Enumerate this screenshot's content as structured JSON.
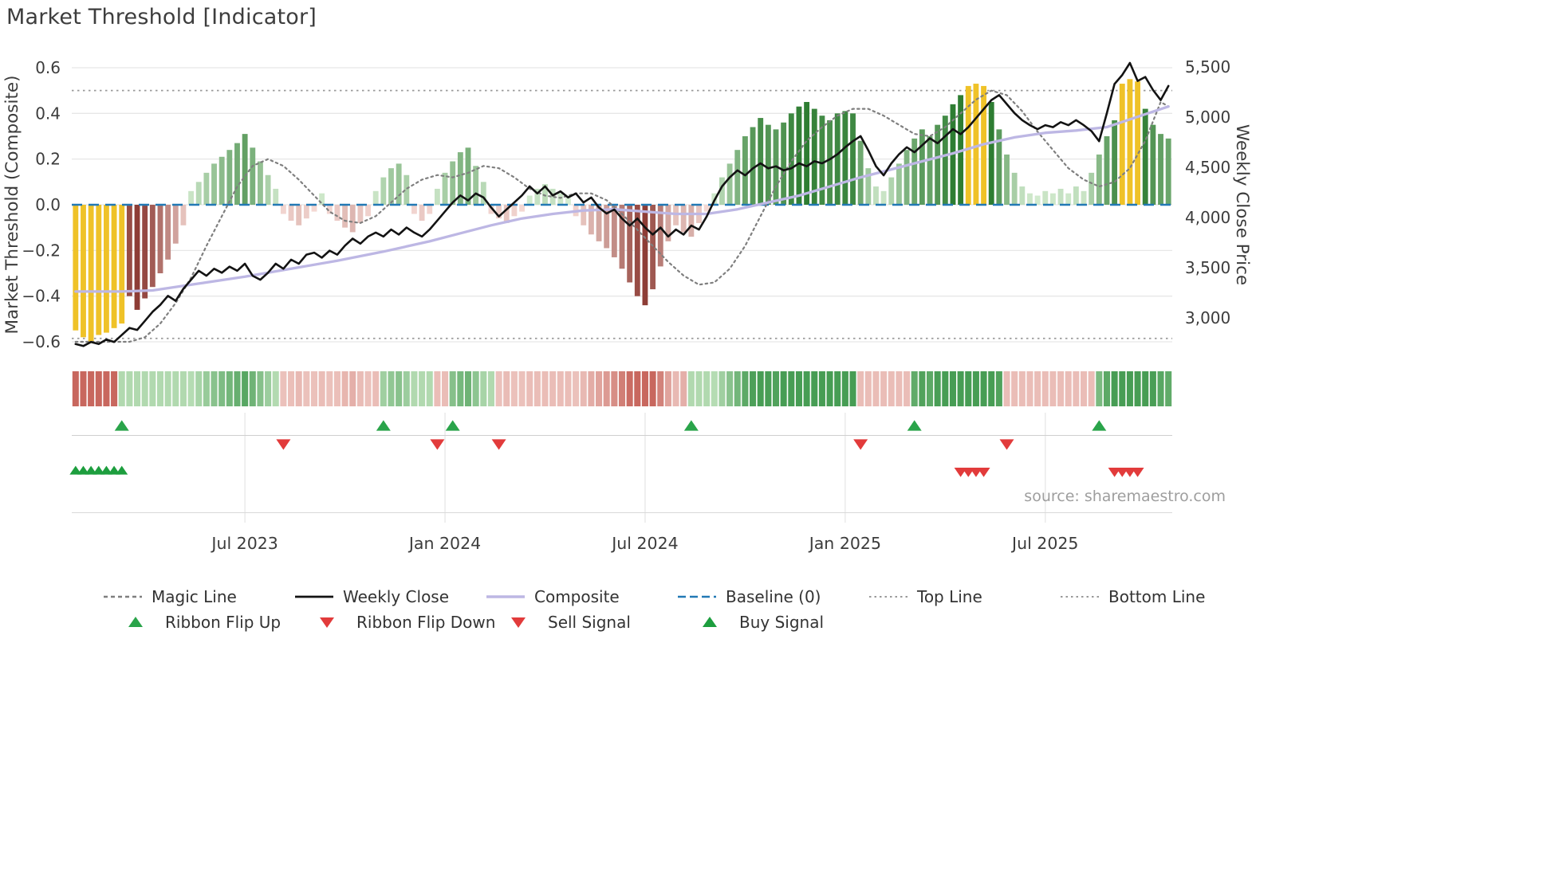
{
  "title": "Market Threshold [Indicator]",
  "source": "source: sharemaestro.com",
  "axes": {
    "left_label": "Market Threshold (Composite)",
    "right_label": "Weekly Close Price",
    "left_ticks": [
      {
        "label": "0.6",
        "value": 0.6
      },
      {
        "label": "0.4",
        "value": 0.4
      },
      {
        "label": "0.2",
        "value": 0.2
      },
      {
        "label": "0.0",
        "value": 0.0
      },
      {
        "label": "−0.2",
        "value": -0.2
      },
      {
        "label": "−0.4",
        "value": -0.4
      },
      {
        "label": "−0.6",
        "value": -0.6
      }
    ],
    "right_ticks": [
      {
        "label": "5,500",
        "value": 5500
      },
      {
        "label": "5,000",
        "value": 5000
      },
      {
        "label": "4,500",
        "value": 4500
      },
      {
        "label": "4,000",
        "value": 4000
      },
      {
        "label": "3,500",
        "value": 3500
      },
      {
        "label": "3,000",
        "value": 3000
      }
    ],
    "x_ticks": [
      {
        "label": "Jul 2023",
        "week": 22
      },
      {
        "label": "Jan 2024",
        "week": 48
      },
      {
        "label": "Jul 2024",
        "week": 74
      },
      {
        "label": "Jan 2025",
        "week": 100
      },
      {
        "label": "Jul 2025",
        "week": 126
      }
    ]
  },
  "chart_data": {
    "type": "bar+line",
    "frequency": "weekly",
    "baseline": 0,
    "top_line": 0.5,
    "bottom_line": -0.585,
    "upper_extreme": 0.5,
    "lower_extreme": -0.5,
    "left_axis_range": [
      -0.65,
      0.65
    ],
    "right_axis_range": [
      2700,
      5600
    ],
    "threshold_bars": [
      -0.55,
      -0.58,
      -0.6,
      -0.57,
      -0.56,
      -0.54,
      -0.52,
      -0.4,
      -0.46,
      -0.41,
      -0.36,
      -0.3,
      -0.24,
      -0.17,
      -0.09,
      0.06,
      0.1,
      0.14,
      0.18,
      0.21,
      0.24,
      0.27,
      0.31,
      0.25,
      0.19,
      0.13,
      0.07,
      -0.04,
      -0.07,
      -0.09,
      -0.06,
      -0.03,
      0.05,
      -0.04,
      -0.07,
      -0.1,
      -0.12,
      -0.08,
      -0.05,
      0.06,
      0.12,
      0.16,
      0.18,
      0.13,
      -0.04,
      -0.07,
      -0.04,
      0.07,
      0.14,
      0.19,
      0.23,
      0.25,
      0.17,
      0.1,
      -0.04,
      -0.06,
      -0.08,
      -0.05,
      -0.03,
      0.04,
      0.07,
      0.09,
      0.07,
      0.05,
      0.03,
      -0.05,
      -0.09,
      -0.13,
      -0.16,
      -0.19,
      -0.23,
      -0.28,
      -0.34,
      -0.4,
      -0.44,
      -0.37,
      -0.27,
      -0.16,
      -0.09,
      -0.12,
      -0.14,
      -0.08,
      -0.03,
      0.05,
      0.12,
      0.18,
      0.24,
      0.3,
      0.34,
      0.38,
      0.35,
      0.33,
      0.36,
      0.4,
      0.43,
      0.45,
      0.42,
      0.39,
      0.37,
      0.4,
      0.41,
      0.4,
      0.28,
      0.16,
      0.08,
      0.06,
      0.12,
      0.18,
      0.24,
      0.29,
      0.33,
      0.3,
      0.35,
      0.39,
      0.44,
      0.48,
      0.52,
      0.53,
      0.52,
      0.45,
      0.33,
      0.22,
      0.14,
      0.08,
      0.05,
      0.04,
      0.06,
      0.05,
      0.07,
      0.05,
      0.08,
      0.06,
      0.14,
      0.22,
      0.3,
      0.37,
      0.53,
      0.55,
      0.54,
      0.42,
      0.35,
      0.31,
      0.29
    ],
    "weekly_close_price": [
      2740,
      2720,
      2760,
      2740,
      2785,
      2760,
      2830,
      2900,
      2880,
      2970,
      3060,
      3130,
      3220,
      3170,
      3290,
      3380,
      3470,
      3420,
      3490,
      3450,
      3510,
      3470,
      3540,
      3420,
      3380,
      3450,
      3540,
      3490,
      3580,
      3540,
      3630,
      3650,
      3600,
      3670,
      3630,
      3720,
      3790,
      3740,
      3810,
      3850,
      3810,
      3880,
      3830,
      3900,
      3850,
      3810,
      3880,
      3970,
      4060,
      4150,
      4220,
      4170,
      4240,
      4200,
      4100,
      4010,
      4080,
      4150,
      4220,
      4310,
      4240,
      4310,
      4220,
      4260,
      4200,
      4240,
      4150,
      4200,
      4100,
      4040,
      4080,
      3990,
      3920,
      3990,
      3900,
      3830,
      3900,
      3810,
      3880,
      3830,
      3920,
      3880,
      4010,
      4170,
      4310,
      4400,
      4470,
      4420,
      4490,
      4540,
      4490,
      4510,
      4470,
      4490,
      4540,
      4510,
      4560,
      4540,
      4580,
      4630,
      4700,
      4760,
      4810,
      4670,
      4510,
      4420,
      4540,
      4630,
      4700,
      4650,
      4720,
      4790,
      4740,
      4810,
      4880,
      4830,
      4900,
      4990,
      5080,
      5170,
      5220,
      5130,
      5040,
      4970,
      4920,
      4880,
      4920,
      4900,
      4950,
      4920,
      4970,
      4920,
      4860,
      4760,
      5040,
      5330,
      5420,
      5540,
      5360,
      5400,
      5270,
      5170,
      5310
    ],
    "composite_line": [
      [
        0,
        -0.38
      ],
      [
        6,
        -0.38
      ],
      [
        10,
        -0.375
      ],
      [
        16,
        -0.345
      ],
      [
        22,
        -0.315
      ],
      [
        28,
        -0.28
      ],
      [
        34,
        -0.245
      ],
      [
        40,
        -0.205
      ],
      [
        46,
        -0.16
      ],
      [
        50,
        -0.125
      ],
      [
        54,
        -0.09
      ],
      [
        58,
        -0.06
      ],
      [
        62,
        -0.04
      ],
      [
        66,
        -0.025
      ],
      [
        70,
        -0.02
      ],
      [
        74,
        -0.03
      ],
      [
        78,
        -0.04
      ],
      [
        82,
        -0.04
      ],
      [
        86,
        -0.02
      ],
      [
        90,
        0.01
      ],
      [
        94,
        0.04
      ],
      [
        98,
        0.08
      ],
      [
        102,
        0.12
      ],
      [
        106,
        0.155
      ],
      [
        110,
        0.19
      ],
      [
        114,
        0.225
      ],
      [
        118,
        0.265
      ],
      [
        122,
        0.295
      ],
      [
        126,
        0.315
      ],
      [
        130,
        0.325
      ],
      [
        134,
        0.34
      ],
      [
        138,
        0.385
      ],
      [
        142,
        0.43
      ]
    ],
    "magic_line": [
      [
        0,
        -0.6
      ],
      [
        7,
        -0.6
      ],
      [
        9,
        -0.58
      ],
      [
        11,
        -0.52
      ],
      [
        13,
        -0.43
      ],
      [
        15,
        -0.32
      ],
      [
        17,
        -0.18
      ],
      [
        19,
        -0.05
      ],
      [
        21,
        0.08
      ],
      [
        23,
        0.17
      ],
      [
        25,
        0.2
      ],
      [
        27,
        0.17
      ],
      [
        29,
        0.11
      ],
      [
        31,
        0.04
      ],
      [
        33,
        -0.03
      ],
      [
        35,
        -0.07
      ],
      [
        37,
        -0.08
      ],
      [
        39,
        -0.05
      ],
      [
        41,
        0.01
      ],
      [
        43,
        0.07
      ],
      [
        45,
        0.11
      ],
      [
        47,
        0.13
      ],
      [
        49,
        0.12
      ],
      [
        51,
        0.14
      ],
      [
        53,
        0.17
      ],
      [
        55,
        0.16
      ],
      [
        57,
        0.12
      ],
      [
        59,
        0.07
      ],
      [
        61,
        0.04
      ],
      [
        63,
        0.03
      ],
      [
        65,
        0.05
      ],
      [
        67,
        0.05
      ],
      [
        69,
        0.02
      ],
      [
        71,
        -0.04
      ],
      [
        73,
        -0.11
      ],
      [
        75,
        -0.18
      ],
      [
        77,
        -0.25
      ],
      [
        79,
        -0.31
      ],
      [
        81,
        -0.35
      ],
      [
        83,
        -0.34
      ],
      [
        85,
        -0.28
      ],
      [
        87,
        -0.18
      ],
      [
        89,
        -0.05
      ],
      [
        91,
        0.08
      ],
      [
        93,
        0.19
      ],
      [
        95,
        0.28
      ],
      [
        97,
        0.34
      ],
      [
        99,
        0.39
      ],
      [
        101,
        0.42
      ],
      [
        103,
        0.42
      ],
      [
        105,
        0.39
      ],
      [
        107,
        0.35
      ],
      [
        109,
        0.31
      ],
      [
        111,
        0.3
      ],
      [
        113,
        0.34
      ],
      [
        115,
        0.4
      ],
      [
        117,
        0.46
      ],
      [
        119,
        0.5
      ],
      [
        121,
        0.48
      ],
      [
        123,
        0.41
      ],
      [
        125,
        0.32
      ],
      [
        127,
        0.24
      ],
      [
        129,
        0.16
      ],
      [
        131,
        0.11
      ],
      [
        133,
        0.08
      ],
      [
        135,
        0.1
      ],
      [
        137,
        0.16
      ],
      [
        139,
        0.28
      ],
      [
        141,
        0.45
      ],
      [
        142,
        0.43
      ]
    ],
    "ribbon_segments": [
      {
        "from": 0,
        "to": 5,
        "state": "down"
      },
      {
        "from": 6,
        "to": 26,
        "state": "up"
      },
      {
        "from": 27,
        "to": 39,
        "state": "down"
      },
      {
        "from": 40,
        "to": 46,
        "state": "up"
      },
      {
        "from": 47,
        "to": 48,
        "state": "down"
      },
      {
        "from": 49,
        "to": 54,
        "state": "up"
      },
      {
        "from": 55,
        "to": 79,
        "state": "down"
      },
      {
        "from": 80,
        "to": 101,
        "state": "up"
      },
      {
        "from": 102,
        "to": 108,
        "state": "down"
      },
      {
        "from": 109,
        "to": 120,
        "state": "up"
      },
      {
        "from": 121,
        "to": 132,
        "state": "down"
      },
      {
        "from": 133,
        "to": 142,
        "state": "up"
      }
    ],
    "signals": {
      "ribbon_flip_up_weeks": [
        6,
        40,
        49,
        80,
        109,
        133
      ],
      "ribbon_flip_down_weeks": [
        27,
        47,
        55,
        102,
        121
      ],
      "buy_signal_weeks": [
        0,
        1,
        2,
        3,
        4,
        5,
        6
      ],
      "sell_signal_weeks": [
        115,
        116,
        117,
        118,
        135,
        136,
        137,
        138
      ]
    }
  },
  "legend": {
    "row1": [
      {
        "label": "Magic Line",
        "swatch": "magic"
      },
      {
        "label": "Weekly Close",
        "swatch": "close"
      },
      {
        "label": "Composite",
        "swatch": "composite"
      },
      {
        "label": "Baseline (0)",
        "swatch": "baseline"
      },
      {
        "label": "Top Line",
        "swatch": "topline"
      },
      {
        "label": "Bottom Line",
        "swatch": "bottomline"
      }
    ],
    "row2": [
      {
        "label": "Ribbon Flip Up",
        "swatch": "flip-up"
      },
      {
        "label": "Ribbon Flip Down",
        "swatch": "flip-down"
      },
      {
        "label": "Sell Signal",
        "swatch": "sell"
      },
      {
        "label": "Buy Signal",
        "swatch": "buy"
      }
    ]
  },
  "colors": {
    "gold": "#efc228",
    "green_dark": "#2e7d32",
    "green_light": "#d9efd5",
    "red_dark": "#8e3d36",
    "red_light": "#f6dcd7",
    "ribbon_green_dark": "#2f8f3f",
    "ribbon_green_light": "#cde9c8",
    "ribbon_red_dark": "#c0544a",
    "ribbon_red_light": "#f3d4cf",
    "weekly_close": "#131313",
    "composite": "#bdb7e4",
    "magic": "#7f7f7f",
    "baseline": "#2279b5",
    "guide": "#999999",
    "grid": "#e7e7e7",
    "flip_up": "#2aa44a",
    "flip_down": "#e23b3b",
    "buy": "#1d9e3e",
    "sell": "#e23b3b",
    "text": "#3c3c3c",
    "source_text": "#9e9e9e"
  }
}
